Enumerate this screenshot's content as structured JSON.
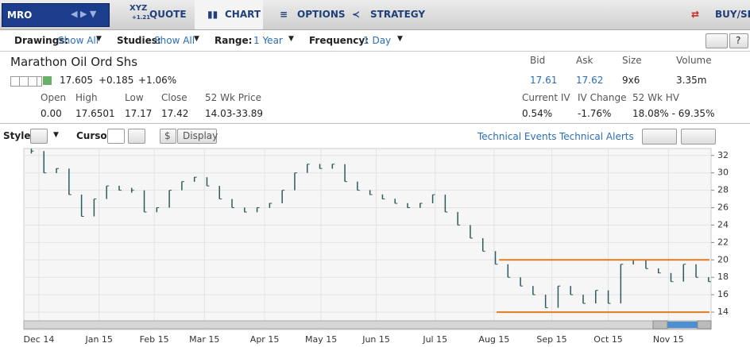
{
  "nav": {
    "symbol": "MRO",
    "tabs": [
      {
        "icon": "XYZ",
        "sub": "+1.21",
        "label": "QUOTE"
      },
      {
        "label": "CHART"
      },
      {
        "label": "OPTIONS"
      },
      {
        "label": "STRATEGY"
      }
    ],
    "buy_sell": "BUY/SELL"
  },
  "filters": [
    {
      "label": "Drawings:",
      "value": "Show All"
    },
    {
      "label": "Studies:",
      "value": "Show All"
    },
    {
      "label": "Range:",
      "value": "1 Year"
    },
    {
      "label": "Frequency:",
      "value": "1 Day"
    }
  ],
  "quote": {
    "name": "Marathon Oil Ord Shs",
    "last": "17.605",
    "change": "+0.185",
    "pct": "+1.06%",
    "stats": [
      {
        "label": "Open",
        "value": "0.00"
      },
      {
        "label": "High",
        "value": "17.6501"
      },
      {
        "label": "Low",
        "value": "17.17"
      },
      {
        "label": "Close",
        "value": "17.42"
      },
      {
        "label": "52 Wk Price",
        "value": "14.03-33.89"
      }
    ],
    "top_right": [
      {
        "label": "Bid",
        "value": "17.61"
      },
      {
        "label": "Ask",
        "value": "17.62"
      },
      {
        "label": "Size",
        "value": "9x6"
      },
      {
        "label": "Volume",
        "value": "3.35m"
      }
    ],
    "bottom_right": [
      {
        "label": "Current IV",
        "value": "0.54%"
      },
      {
        "label": "IV Change",
        "value": "-1.76%"
      },
      {
        "label": "52 Wk HV",
        "value": "18.08% - 69.35%"
      }
    ]
  },
  "toolbar": {
    "style": "Style:",
    "cursor": "Cursor:",
    "dollar": "$",
    "display": "Display",
    "events": "Technical Events",
    "alerts": "Technical Alerts"
  },
  "chart_data": {
    "type": "price_bars",
    "color": "#2f5a5a",
    "values": [
      32.5,
      30,
      30.5,
      27.5,
      25,
      27,
      28.5,
      28,
      28,
      25.5,
      26,
      28,
      29,
      29.5,
      28.5,
      27,
      26,
      25.5,
      26,
      26.5,
      28,
      30,
      31,
      30.5,
      31,
      29,
      28,
      27.5,
      27,
      26.5,
      26,
      26.5,
      27.5,
      25.5,
      24,
      22.5,
      21,
      19.5,
      18,
      17,
      16,
      14.5,
      17,
      16,
      15,
      16.5,
      15,
      19.5,
      20,
      19,
      18.5,
      17.5,
      19.5,
      18,
      17.5
    ],
    "xlim": [
      -0.6,
      54.2
    ],
    "xticks": [
      {
        "value": 0.6,
        "label": "Dec 14"
      },
      {
        "value": 5.4,
        "label": "Jan 15"
      },
      {
        "value": 9.8,
        "label": "Feb 15"
      },
      {
        "value": 13.8,
        "label": "Mar 15"
      },
      {
        "value": 18.6,
        "label": "Apr 15"
      },
      {
        "value": 23.1,
        "label": "May 15"
      },
      {
        "value": 27.5,
        "label": "Jun 15"
      },
      {
        "value": 32.2,
        "label": "Jul 15"
      },
      {
        "value": 36.9,
        "label": "Aug 15"
      },
      {
        "value": 41.5,
        "label": "Sep 15"
      },
      {
        "value": 46.0,
        "label": "Oct 15"
      },
      {
        "value": 50.8,
        "label": "Nov 15"
      }
    ],
    "ylim": [
      12,
      32.8
    ],
    "yticks": [
      14,
      16,
      18,
      20,
      22,
      24,
      26,
      28,
      30,
      32
    ],
    "grid": true,
    "support_lines": [
      {
        "value": 20,
        "from": 37.3,
        "color": "#e07b20"
      },
      {
        "value": 14,
        "from": 37.1,
        "color": "#e07b20"
      }
    ]
  }
}
